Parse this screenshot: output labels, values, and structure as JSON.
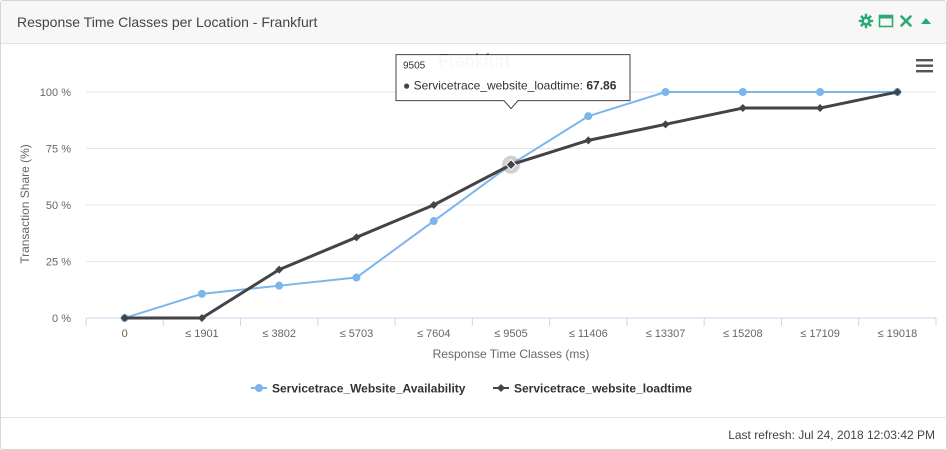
{
  "panel": {
    "title": "Response Time Classes per Location - Frankfurt",
    "icons": [
      "gear-icon",
      "maximize-icon",
      "close-icon",
      "collapse-icon"
    ],
    "icon_color": "#2aa876"
  },
  "footer": {
    "last_refresh": "Last refresh: Jul 24, 2018 12:03:42 PM"
  },
  "chart_data": {
    "type": "line",
    "title": "Frankfurt",
    "xlabel": "Response Time Classes (ms)",
    "ylabel": "Transaction Share (%)",
    "ylim": [
      0,
      100
    ],
    "yticks": [
      "0 %",
      "25 %",
      "50 %",
      "75 %",
      "100 %"
    ],
    "categories": [
      "0",
      "≤ 1901",
      "≤ 3802",
      "≤ 5703",
      "≤ 7604",
      "≤ 9505",
      "≤ 11406",
      "≤ 13307",
      "≤ 15208",
      "≤ 17109",
      "≤ 19018"
    ],
    "grid": true,
    "legend": "bottom",
    "series": [
      {
        "name": "Servicetrace_Website_Availability",
        "color": "#7cb5ec",
        "marker": "circle",
        "values": [
          0,
          10.7,
          14.3,
          17.9,
          42.9,
          67.9,
          89.3,
          100,
          100,
          100,
          100
        ]
      },
      {
        "name": "Servicetrace_website_loadtime",
        "color": "#434348",
        "marker": "diamond",
        "values": [
          0,
          0,
          21.4,
          35.7,
          50,
          67.86,
          78.6,
          85.7,
          92.9,
          92.9,
          100
        ]
      }
    ],
    "tooltip": {
      "category": "9505",
      "series": "Servicetrace_website_loadtime",
      "label": "Servicetrace_website_loadtime: ",
      "value": "67.86"
    },
    "menu_icon": "hamburger-menu-icon"
  }
}
